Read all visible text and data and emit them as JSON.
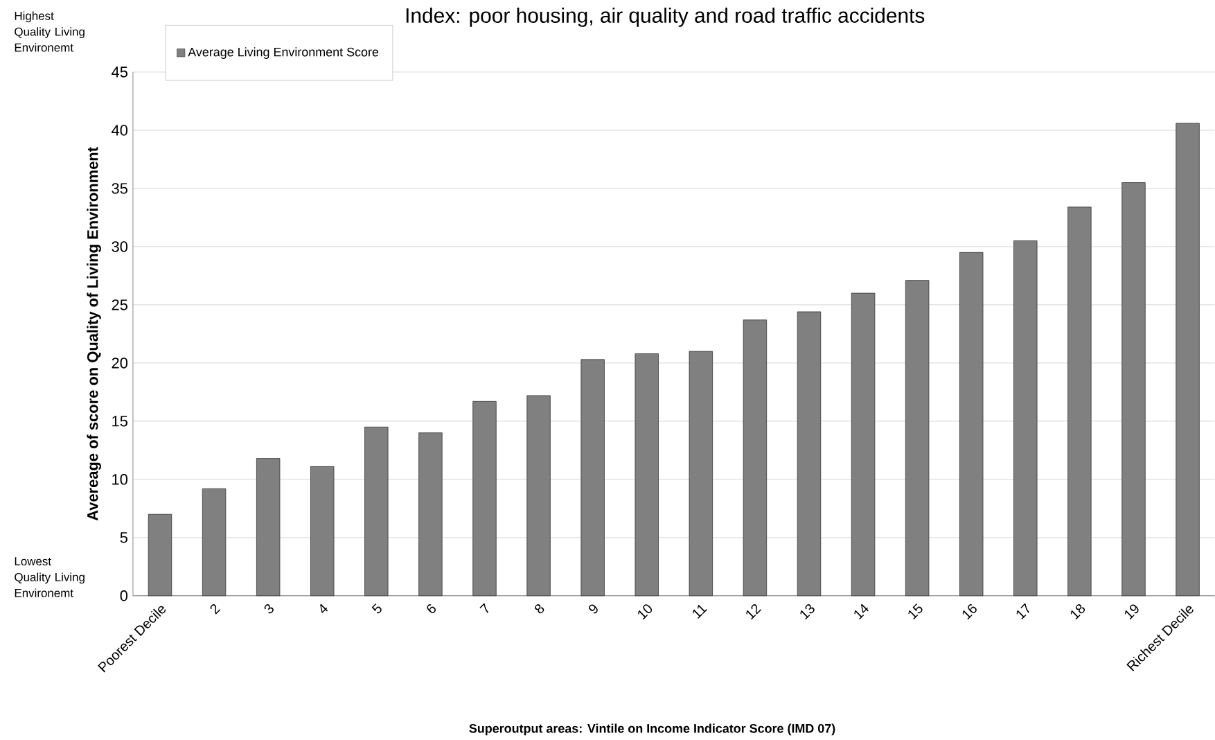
{
  "chart_data": {
    "type": "bar",
    "title": "Index: poor housing, air quality and road traffic accidents",
    "xlabel": "Superoutput areas: Vintile on Income Indicator Score (IMD 07)",
    "ylabel": "Avereage of score on Quality of Living Environment",
    "annotations": [
      "Highest Quality Living Environemt",
      "Lowest Quality Living Environemt"
    ],
    "categories": [
      "Poorest Decile",
      "2",
      "3",
      "4",
      "5",
      "6",
      "7",
      "8",
      "9",
      "10",
      "11",
      "12",
      "13",
      "14",
      "15",
      "16",
      "17",
      "18",
      "19",
      "Richest Decile"
    ],
    "series": [
      {
        "name": "Average Living Environment Score",
        "color": "#808080",
        "values": [
          7.0,
          9.2,
          11.8,
          11.1,
          14.5,
          14.0,
          16.7,
          17.2,
          20.3,
          20.8,
          21.0,
          23.7,
          24.4,
          26.0,
          27.1,
          29.5,
          30.5,
          33.4,
          35.5,
          40.6
        ]
      }
    ],
    "ylim": [
      0,
      45
    ],
    "yticks": [
      0,
      5,
      10,
      15,
      20,
      25,
      30,
      35,
      40,
      45
    ],
    "grid": "y",
    "legend": "top left"
  }
}
